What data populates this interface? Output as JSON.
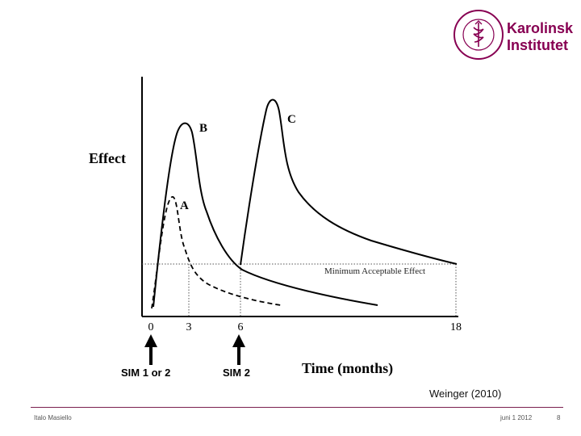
{
  "logo": {
    "name_line1": "Karolinska",
    "name_line2": "Institutet",
    "seal_text": "KAROLINSKA INSTITUTET ANNO 1810",
    "brand_color": "#870052"
  },
  "figure": {
    "y_axis_label": "Effect",
    "x_axis_label": "Time (months)",
    "threshold_label": "Minimum Acceptable Effect",
    "curve_labels": {
      "a": "A",
      "b": "B",
      "c": "C"
    },
    "x_ticks": [
      "0",
      "3",
      "6",
      "18"
    ],
    "markers": [
      {
        "label": "SIM 1 or 2"
      },
      {
        "label": "SIM 2"
      }
    ]
  },
  "citation": "Weinger (2010)",
  "footer": {
    "author": "Italo Masiello",
    "date": "juni 1 2012",
    "page": "8"
  }
}
